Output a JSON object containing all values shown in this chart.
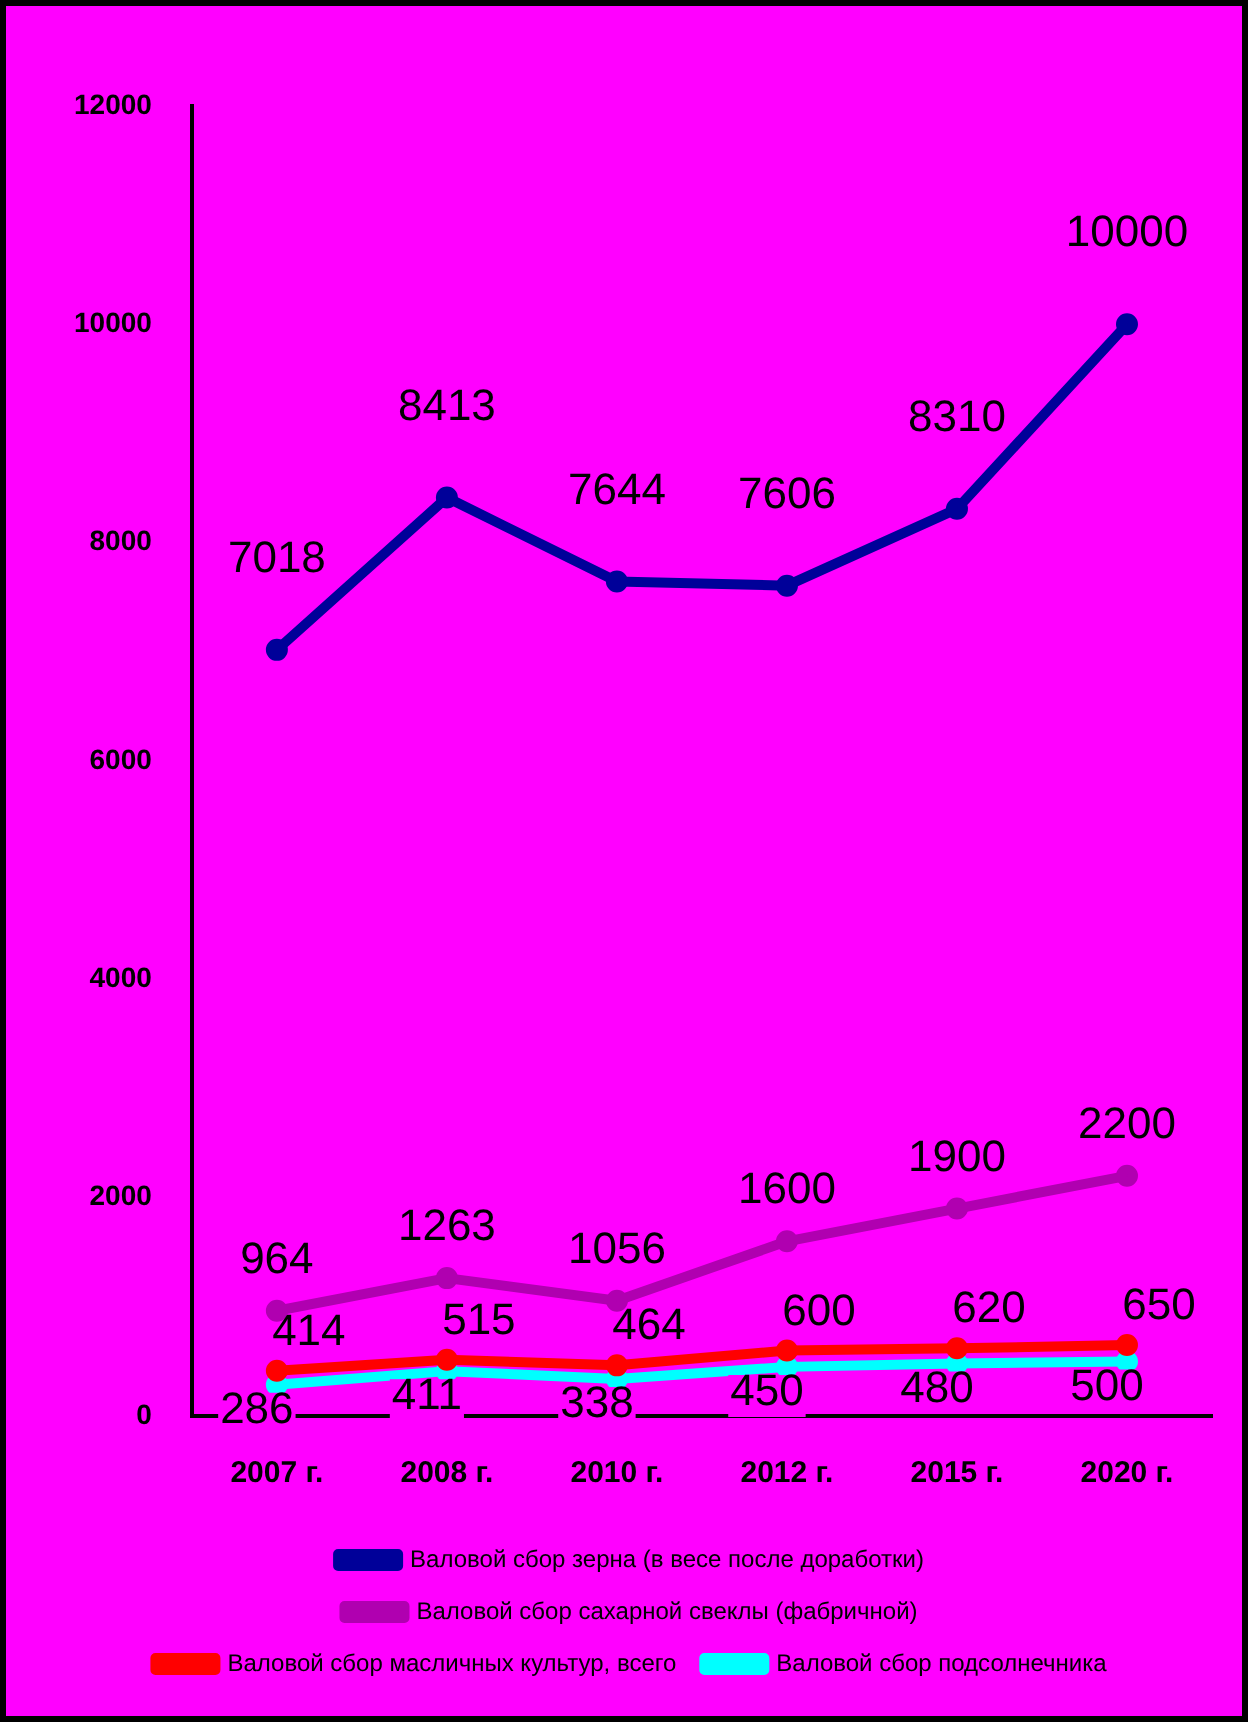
{
  "chart_data": {
    "type": "line",
    "categories": [
      "2007 г.",
      "2008 г.",
      "2010 г.",
      "2012 г.",
      "2015 г.",
      "2020 г."
    ],
    "series": [
      {
        "name": "Валовой сбор зерна (в весе после доработки)",
        "color": "#000099",
        "values": [
          7018,
          8413,
          7644,
          7606,
          8310,
          10000
        ]
      },
      {
        "name": "Валовой сбор сахарной свеклы (фабричной)",
        "color": "#b000b0",
        "values": [
          964,
          1263,
          1056,
          1600,
          1900,
          2200
        ]
      },
      {
        "name": "Валовой сбор масличных культур, всего",
        "color": "#ff0000",
        "values": [
          414,
          515,
          464,
          600,
          620,
          650
        ]
      },
      {
        "name": "Валовой сбор подсолнечника",
        "color": "#00ffff",
        "values": [
          286,
          411,
          338,
          450,
          480,
          500
        ]
      }
    ],
    "ylim": [
      0,
      12000
    ],
    "yticks": [
      0,
      2000,
      4000,
      6000,
      8000,
      10000,
      12000
    ],
    "grid": false,
    "legend": "bottom",
    "data_labels": true,
    "marker": "circle"
  }
}
